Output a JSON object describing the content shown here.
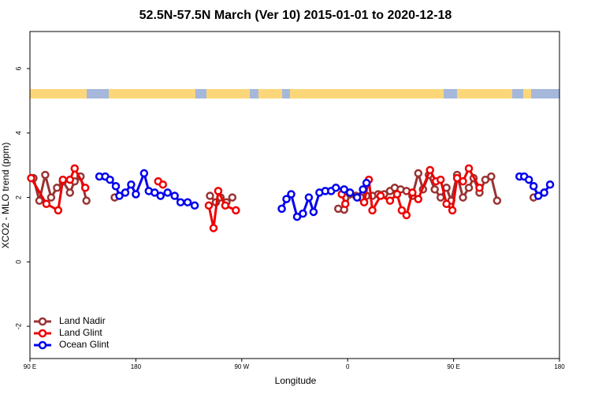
{
  "chart_data": {
    "type": "line",
    "title": "52.5N-57.5N March (Ver 10)   2015-01-01 to 2020-12-18",
    "x_label": "Longitude",
    "y_label": "XCO2 - MLO trend (ppm)",
    "xlim": [
      90,
      540
    ],
    "ylim": [
      -3,
      7.15
    ],
    "xticks": [
      {
        "value": 90,
        "label": "90 E"
      },
      {
        "value": 180,
        "label": "180"
      },
      {
        "value": 270,
        "label": "90 W"
      },
      {
        "value": 360,
        "label": "0"
      },
      {
        "value": 450,
        "label": "90 E"
      },
      {
        "value": 540,
        "label": "180"
      }
    ],
    "yticks": [
      -2,
      0,
      2,
      4,
      6
    ],
    "legend": "bottom-left",
    "series": [
      {
        "name": "Land Nadir",
        "color": "#993333",
        "x": [
          93,
          98,
          103,
          108,
          113,
          118,
          124,
          128,
          133,
          138,
          null,
          162,
          null,
          243,
          248,
          252,
          257,
          262,
          null,
          352,
          357,
          362,
          367,
          371,
          376,
          381,
          386,
          391,
          396,
          400,
          405,
          410,
          415,
          420,
          424,
          429,
          434,
          439,
          444,
          448,
          453,
          458,
          463,
          467,
          472,
          477,
          482,
          487,
          null,
          518
        ],
        "values": [
          2.6,
          1.9,
          2.7,
          2.0,
          2.3,
          2.5,
          2.15,
          2.5,
          2.65,
          1.9,
          null,
          2.0,
          null,
          2.05,
          1.85,
          2.0,
          1.85,
          2.0,
          null,
          1.65,
          1.62,
          2.1,
          2.05,
          2.0,
          2.05,
          2.05,
          2.1,
          2.1,
          2.2,
          2.3,
          2.25,
          2.2,
          2.05,
          2.75,
          2.25,
          2.7,
          2.25,
          2.0,
          2.3,
          1.9,
          2.7,
          2.0,
          2.3,
          2.6,
          2.15,
          2.55,
          2.65,
          1.9,
          null,
          2.0
        ]
      },
      {
        "name": "Land Glint",
        "color": "#ee0000",
        "x": [
          91,
          104,
          114,
          118,
          124,
          128,
          137,
          null,
          199,
          203,
          null,
          242,
          246,
          250,
          256,
          265,
          null,
          355,
          358,
          null,
          374,
          378,
          381,
          388,
          396,
          402,
          406,
          410,
          415,
          420,
          430,
          435,
          439,
          444,
          449,
          453,
          458,
          463,
          472
        ],
        "values": [
          2.6,
          1.8,
          1.6,
          2.55,
          2.55,
          2.9,
          2.3,
          null,
          2.5,
          2.4,
          null,
          1.75,
          1.05,
          2.2,
          1.75,
          1.6,
          null,
          2.1,
          1.8,
          null,
          1.85,
          2.55,
          1.6,
          2.05,
          1.9,
          2.1,
          1.6,
          1.45,
          2.15,
          1.95,
          2.85,
          2.5,
          2.55,
          1.8,
          1.6,
          2.6,
          2.5,
          2.9,
          2.3
        ]
      },
      {
        "name": "Ocean Glint",
        "color": "#0000ee",
        "x": [
          149,
          154,
          158,
          163,
          166,
          171,
          176,
          180,
          187,
          191,
          196,
          201,
          207,
          213,
          218,
          224,
          230,
          null,
          304,
          308,
          312,
          317,
          322,
          327,
          331,
          336,
          341,
          346,
          350,
          357,
          362,
          368,
          373,
          376,
          null,
          506,
          510,
          514,
          518,
          522,
          527,
          532
        ],
        "values": [
          2.65,
          2.65,
          2.55,
          2.35,
          2.05,
          2.15,
          2.4,
          2.1,
          2.75,
          2.2,
          2.15,
          2.05,
          2.15,
          2.05,
          1.85,
          1.85,
          1.75,
          null,
          1.65,
          1.95,
          2.1,
          1.4,
          1.5,
          2.0,
          1.55,
          2.15,
          2.2,
          2.2,
          2.3,
          2.25,
          2.15,
          2.0,
          2.25,
          2.45,
          null,
          2.65,
          2.65,
          2.55,
          2.35,
          2.05,
          2.15,
          2.4
        ]
      }
    ]
  }
}
